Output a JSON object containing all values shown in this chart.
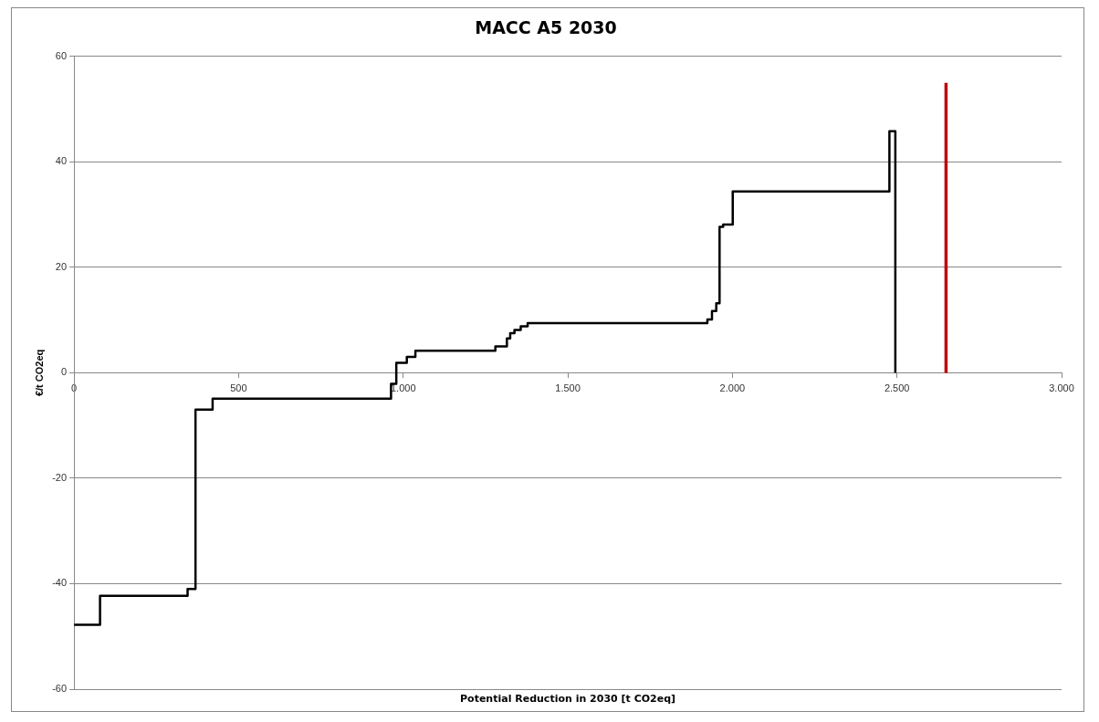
{
  "chart_data": {
    "type": "step",
    "title": "MACC A5 2030",
    "xlabel": "Potential Reduction in 2030 [t CO2eq]",
    "ylabel": "€/t CO2eq",
    "series": [
      {
        "color": "#000000",
        "x": [
          0,
          79,
          345,
          369,
          421,
          963,
          979,
          1011,
          1037,
          1280,
          1315,
          1325,
          1338,
          1357,
          1378,
          1924,
          1938,
          1951,
          1961,
          1972,
          2001,
          2477,
          2495
        ],
        "values": [
          -47.8,
          -42.3,
          -41,
          -7,
          -4.9,
          -2.1,
          1.9,
          3,
          4.2,
          5,
          6.5,
          7.5,
          8.1,
          8.8,
          9.4,
          10.1,
          11.7,
          13.2,
          27.7,
          28.1,
          34.4,
          45.8,
          0
        ]
      },
      {
        "type": "line",
        "color": "#c00000",
        "x": [
          2649,
          2649
        ],
        "values": [
          0,
          55
        ]
      }
    ],
    "xlim": [
      0,
      3000
    ],
    "xticks": [
      0,
      500,
      {
        "value": 1000,
        "label": "1.000"
      },
      {
        "value": 1500,
        "label": "1.500"
      },
      {
        "value": 2000,
        "label": "2.000"
      },
      {
        "value": 2500,
        "label": "2.500"
      },
      {
        "value": 3000,
        "label": "3.000"
      }
    ],
    "ylim": [
      -60,
      60
    ],
    "yticks": [
      -60,
      -40,
      -20,
      0,
      20,
      40,
      60
    ],
    "grid": "y"
  }
}
